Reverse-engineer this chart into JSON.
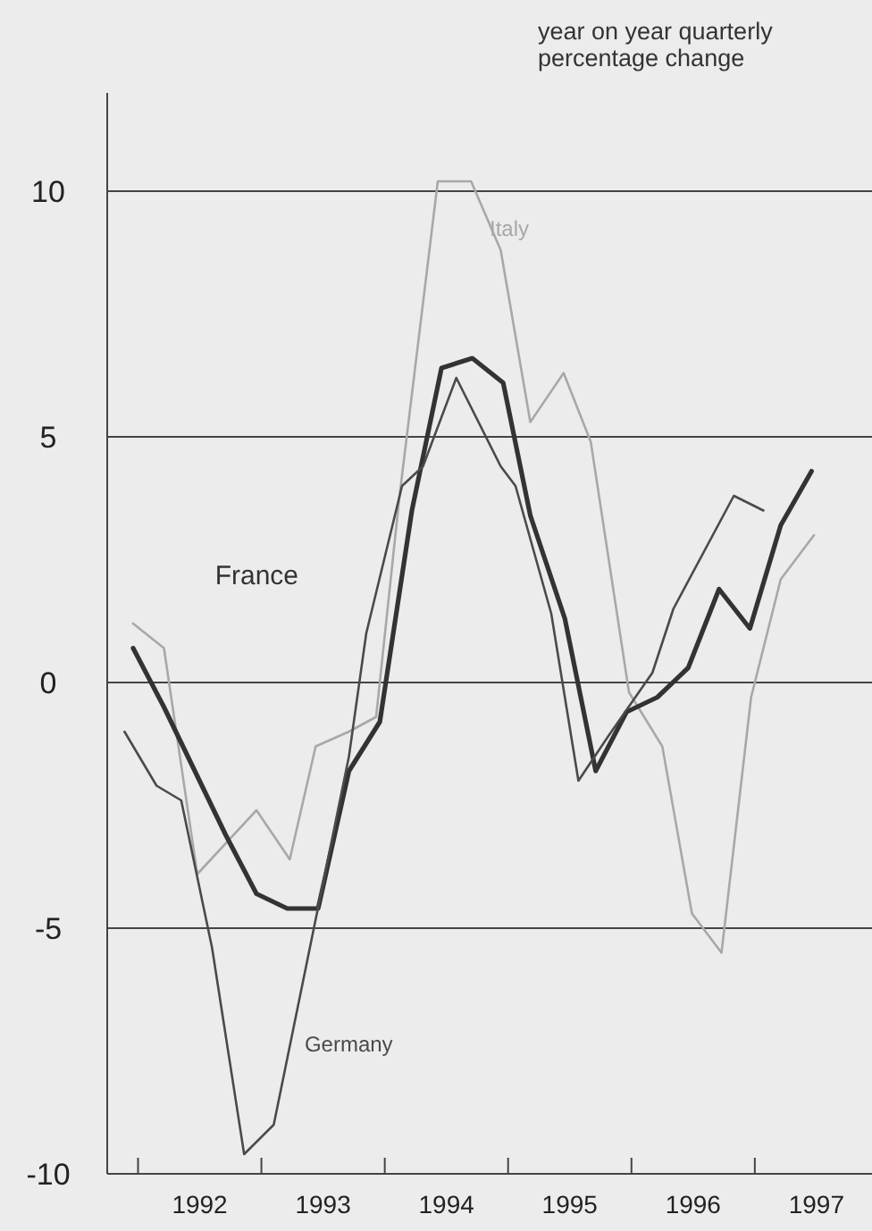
{
  "chart_data": {
    "type": "line",
    "ylabel": "year on year quarterly percentage change",
    "xlim": [
      1991.75,
      1997.95
    ],
    "ylim": [
      -10,
      12
    ],
    "xticks": [
      {
        "value": 1992,
        "label": null
      },
      {
        "value": 1992.5,
        "label": "1992"
      },
      {
        "value": 1993,
        "label": null
      },
      {
        "value": 1993.5,
        "label": "1993"
      },
      {
        "value": 1994,
        "label": null
      },
      {
        "value": 1994.5,
        "label": "1994"
      },
      {
        "value": 1995,
        "label": null
      },
      {
        "value": 1995.5,
        "label": "1995"
      },
      {
        "value": 1996,
        "label": null
      },
      {
        "value": 1996.5,
        "label": "1996"
      },
      {
        "value": 1997,
        "label": null
      },
      {
        "value": 1997.5,
        "label": "1997"
      }
    ],
    "yticks": [
      -10,
      -5,
      0,
      5,
      10
    ],
    "grid": "y",
    "line_style": "solid",
    "marker": "none",
    "series": [
      {
        "name": "Italy",
        "color": "#a8a8a8",
        "x": [
          1991.96,
          1992.21,
          1992.48,
          1992.96,
          1993.23,
          1993.44,
          1993.71,
          1993.93,
          1994.12,
          1994.43,
          1994.7,
          1994.94,
          1995.18,
          1995.45,
          1995.67,
          1995.98,
          1996.25,
          1996.49,
          1996.73,
          1996.97,
          1997.21,
          1997.48
        ],
        "values": [
          1.2,
          0.7,
          -3.9,
          -2.6,
          -3.6,
          -1.3,
          -1.0,
          -0.7,
          3.8,
          10.2,
          10.2,
          8.8,
          5.3,
          6.3,
          4.9,
          -0.2,
          -1.3,
          -4.7,
          -5.5,
          -0.3,
          2.1,
          3.0
        ]
      },
      {
        "name": "France",
        "color": "#333333",
        "x": [
          1991.96,
          1992.21,
          1992.46,
          1992.71,
          1992.96,
          1993.21,
          1993.46,
          1993.71,
          1993.96,
          1994.22,
          1994.46,
          1994.71,
          1994.96,
          1995.18,
          1995.46,
          1995.71,
          1995.96,
          1996.21,
          1996.46,
          1996.71,
          1996.96,
          1997.21,
          1997.46
        ],
        "values": [
          0.7,
          -0.5,
          -1.8,
          -3.1,
          -4.3,
          -4.6,
          -4.6,
          -1.8,
          -0.8,
          3.5,
          6.4,
          6.6,
          6.1,
          3.4,
          1.3,
          -1.8,
          -0.6,
          -0.3,
          0.3,
          1.9,
          1.1,
          3.2,
          4.3
        ]
      },
      {
        "name": "Germany",
        "color": "#4a4a4a",
        "x": [
          1991.89,
          1992.15,
          1992.35,
          1992.6,
          1992.86,
          1993.1,
          1993.71,
          1993.85,
          1994.14,
          1994.31,
          1994.58,
          1994.94,
          1995.06,
          1995.35,
          1995.57,
          1995.81,
          1996.17,
          1996.34,
          1996.83,
          1997.07
        ],
        "values": [
          -1.0,
          -2.1,
          -2.4,
          -5.4,
          -9.6,
          -9.0,
          -1.5,
          1.0,
          4.0,
          4.4,
          6.2,
          4.4,
          4.0,
          1.4,
          -2.0,
          -1.1,
          0.2,
          1.5,
          3.8,
          3.5
        ]
      }
    ]
  }
}
